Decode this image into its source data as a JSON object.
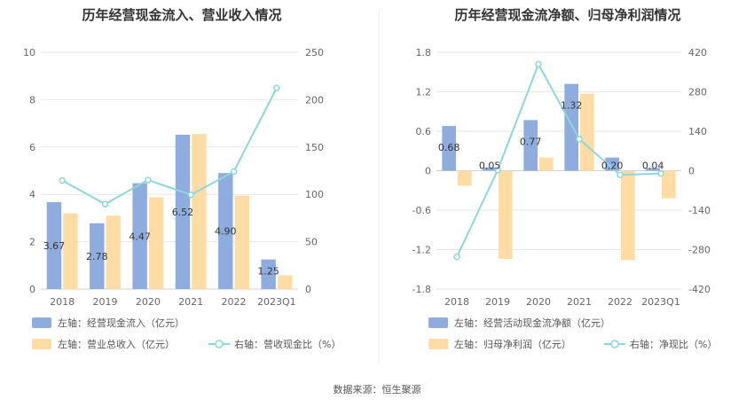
{
  "colors": {
    "primary_bar": "#8eadde",
    "secondary_bar": "#ffdba6",
    "line": "#8ed6dc",
    "grid": "#e6e6e6",
    "divider": "#eeeeee"
  },
  "footer": "数据来源：恒生聚源",
  "chart_data": [
    {
      "type": "bar",
      "title": "历年经营现金流入、营业收入情况",
      "categories": [
        "2018",
        "2019",
        "2020",
        "2021",
        "2022",
        "2023Q1"
      ],
      "left_axis": {
        "ylim": [
          0,
          10
        ],
        "ticks": [
          "0",
          "2",
          "4",
          "6",
          "8",
          "10"
        ]
      },
      "right_axis": {
        "ylim": [
          0,
          250
        ],
        "ticks": [
          "0",
          "50",
          "100",
          "150",
          "200",
          "250"
        ]
      },
      "series": [
        {
          "name": "左轴：经营现金流入（亿元）",
          "axis": "left",
          "kind": "bar",
          "values": [
            3.67,
            2.78,
            4.47,
            6.52,
            4.9,
            1.25
          ],
          "labels": [
            "3.67",
            "2.78",
            "4.47",
            "6.52",
            "4.90",
            "1.25"
          ]
        },
        {
          "name": "左轴：营业总收入（亿元）",
          "axis": "left",
          "kind": "bar",
          "values": [
            3.2,
            3.1,
            3.88,
            6.55,
            3.95,
            0.58
          ]
        },
        {
          "name": "右轴：营收现金比（%）",
          "axis": "right",
          "kind": "line",
          "values": [
            114.7,
            89.7,
            115.2,
            99.5,
            124.1,
            212.3
          ]
        }
      ],
      "grid": true,
      "legend_position": "bottom"
    },
    {
      "type": "bar",
      "title": "历年经营现金流净额、归母净利润情况",
      "categories": [
        "2018",
        "2019",
        "2020",
        "2021",
        "2022",
        "2023Q1"
      ],
      "left_axis": {
        "ylim": [
          -1.8,
          1.8
        ],
        "ticks": [
          "-1.8",
          "-1.2",
          "-0.6",
          "0",
          "0.6",
          "1.2",
          "1.8"
        ]
      },
      "right_axis": {
        "ylim": [
          -420,
          420
        ],
        "ticks": [
          "-420",
          "-280",
          "-140",
          "0",
          "140",
          "280",
          "420"
        ]
      },
      "series": [
        {
          "name": "左轴：经营活动现金流净额（亿元）",
          "axis": "left",
          "kind": "bar",
          "values": [
            0.68,
            0.05,
            0.77,
            1.32,
            0.2,
            0.04
          ],
          "labels": [
            "0.68",
            "0.05",
            "0.77",
            "1.32",
            "0.20",
            "0.04"
          ]
        },
        {
          "name": "左轴：归母净利润（亿元）",
          "axis": "left",
          "kind": "bar",
          "values": [
            -0.23,
            -1.34,
            0.2,
            1.17,
            -1.36,
            -0.42
          ]
        },
        {
          "name": "右轴：净现比（%）",
          "axis": "right",
          "kind": "line",
          "values": [
            -306,
            2,
            378,
            112,
            -15,
            -10
          ]
        }
      ],
      "grid": true,
      "legend_position": "bottom"
    }
  ]
}
